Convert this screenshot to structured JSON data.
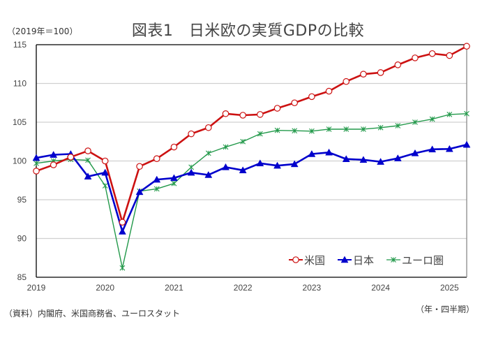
{
  "chart_data": {
    "type": "line",
    "title": "図表1　日米欧の実質GDPの比較",
    "ylabel": "（2019年＝100）",
    "xlabel": "（年・四半期）",
    "source": "（資料）内閣府、米国商務省、ユーロスタット",
    "ylim": [
      85,
      115
    ],
    "yticks": [
      85,
      90,
      95,
      100,
      105,
      110,
      115
    ],
    "grid": true,
    "legend_position": "bottom-right",
    "x": [
      "2019Q1",
      "2019Q2",
      "2019Q3",
      "2019Q4",
      "2020Q1",
      "2020Q2",
      "2020Q3",
      "2020Q4",
      "2021Q1",
      "2021Q2",
      "2021Q3",
      "2021Q4",
      "2022Q1",
      "2022Q2",
      "2022Q3",
      "2022Q4",
      "2023Q1",
      "2023Q2",
      "2023Q3",
      "2023Q4",
      "2024Q1",
      "2024Q2",
      "2024Q3",
      "2024Q4",
      "2025Q1",
      "2025Q2"
    ],
    "xtick_labels": [
      {
        "label": "2019",
        "index": 0
      },
      {
        "label": "2020",
        "index": 4
      },
      {
        "label": "2021",
        "index": 8
      },
      {
        "label": "2022",
        "index": 12
      },
      {
        "label": "2023",
        "index": 16
      },
      {
        "label": "2024",
        "index": 20
      },
      {
        "label": "2025",
        "index": 24
      }
    ],
    "series": [
      {
        "name": "米国",
        "color": "#cc1111",
        "marker": "circle",
        "values": [
          98.7,
          99.5,
          100.5,
          101.3,
          100.0,
          92.1,
          99.3,
          100.3,
          101.8,
          103.5,
          104.3,
          106.1,
          105.9,
          106.0,
          106.8,
          107.5,
          108.3,
          109.0,
          110.25,
          111.2,
          111.4,
          112.4,
          113.3,
          113.85,
          113.6,
          114.8
        ]
      },
      {
        "name": "日本",
        "color": "#0000cc",
        "marker": "triangle",
        "values": [
          100.4,
          100.8,
          100.9,
          98.0,
          98.5,
          90.9,
          96.0,
          97.6,
          97.8,
          98.5,
          98.2,
          99.2,
          98.8,
          99.7,
          99.4,
          99.6,
          100.9,
          101.1,
          100.25,
          100.15,
          99.9,
          100.35,
          101.0,
          101.5,
          101.55,
          102.1
        ]
      },
      {
        "name": "ユーロ圏",
        "color": "#22994a",
        "marker": "x",
        "values": [
          99.7,
          100.0,
          100.2,
          100.1,
          96.8,
          86.2,
          96.1,
          96.4,
          97.1,
          99.2,
          101.0,
          101.8,
          102.5,
          103.5,
          103.95,
          103.9,
          103.85,
          104.1,
          104.1,
          104.1,
          104.3,
          104.55,
          105.0,
          105.4,
          106.0,
          106.1
        ]
      }
    ]
  }
}
